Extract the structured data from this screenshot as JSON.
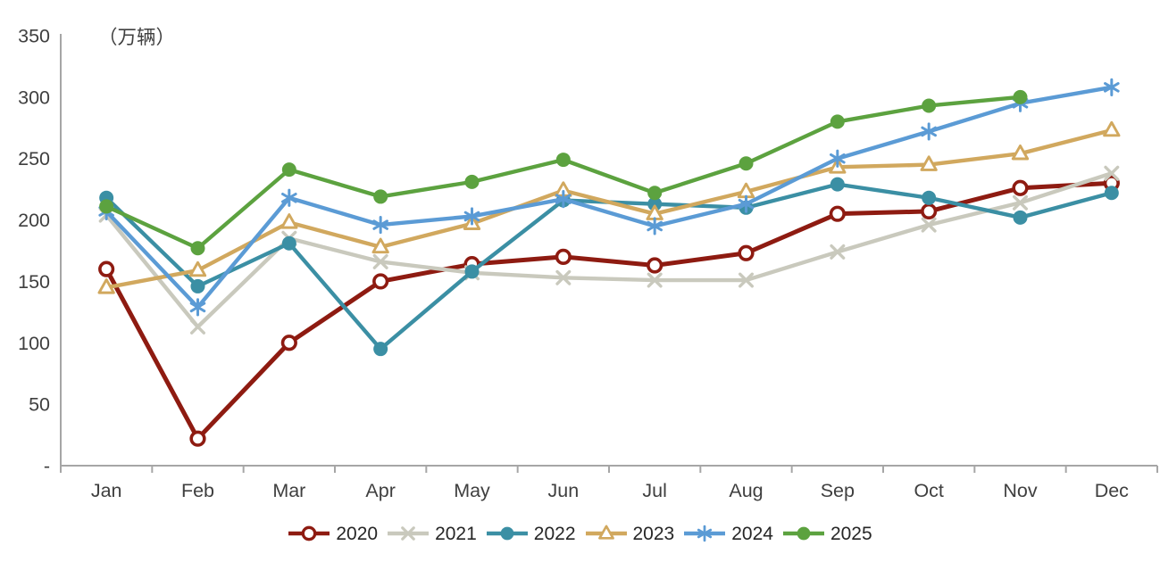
{
  "chart_data": {
    "type": "line",
    "title": "",
    "unit_label": "（万辆）",
    "xlabel": "",
    "ylabel": "（万辆）",
    "categories": [
      "Jan",
      "Feb",
      "Mar",
      "Apr",
      "May",
      "Jun",
      "Jul",
      "Aug",
      "Sep",
      "Oct",
      "Nov",
      "Dec"
    ],
    "ylim": [
      0,
      350
    ],
    "y_ticks": [
      {
        "value": 350,
        "label": "350"
      },
      {
        "value": 300,
        "label": "300"
      },
      {
        "value": 250,
        "label": "250"
      },
      {
        "value": 200,
        "label": "200"
      },
      {
        "value": 150,
        "label": "150"
      },
      {
        "value": 100,
        "label": "100"
      },
      {
        "value": 50,
        "label": "50"
      },
      {
        "value": 0,
        "label": "-"
      }
    ],
    "grid": false,
    "legend_position": "bottom",
    "series": [
      {
        "name": "2020",
        "color": "#8E1B11",
        "marker": "open-circle",
        "values": [
          160,
          22,
          100,
          150,
          164,
          170,
          163,
          173,
          205,
          207,
          226,
          230
        ]
      },
      {
        "name": "2021",
        "color": "#C9C9BD",
        "marker": "x",
        "values": [
          204,
          113,
          185,
          166,
          157,
          153,
          151,
          151,
          174,
          196,
          214,
          238
        ]
      },
      {
        "name": "2022",
        "color": "#3B8FA4",
        "marker": "circle",
        "values": [
          218,
          146,
          181,
          95,
          158,
          216,
          213,
          210,
          229,
          218,
          202,
          222
        ]
      },
      {
        "name": "2023",
        "color": "#D1A85E",
        "marker": "open-triangle",
        "values": [
          145,
          159,
          198,
          178,
          197,
          224,
          205,
          223,
          243,
          245,
          254,
          273
        ]
      },
      {
        "name": "2024",
        "color": "#5B9BD5",
        "marker": "asterisk",
        "values": [
          207,
          129,
          218,
          196,
          203,
          217,
          195,
          213,
          250,
          272,
          295,
          308
        ]
      },
      {
        "name": "2025",
        "color": "#5CA23F",
        "marker": "circle",
        "values": [
          211,
          177,
          241,
          219,
          231,
          249,
          222,
          246,
          280,
          293,
          300,
          null
        ]
      }
    ]
  },
  "style": {
    "axis_color": "#A6A6A6",
    "tick_text_color": "#3F3F3F",
    "legend_text_color": "#262626",
    "background": "#FFFFFF"
  }
}
